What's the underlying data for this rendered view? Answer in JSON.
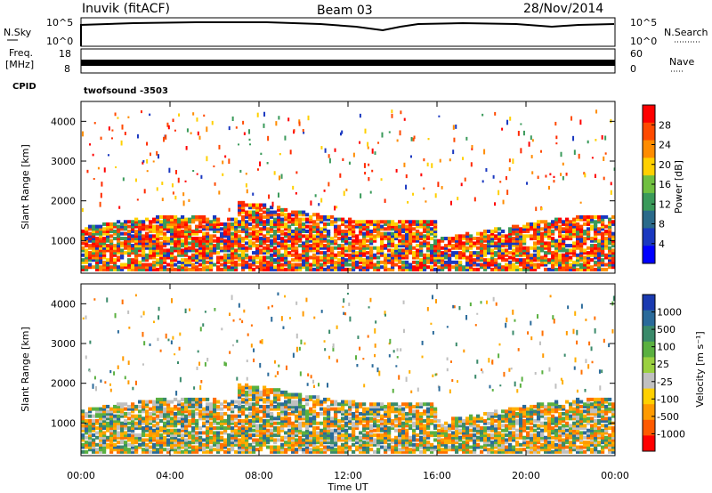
{
  "header": {
    "station": "Inuvik (fitACF)",
    "beam": "Beam 03",
    "date": "28/Nov/2014"
  },
  "panels": {
    "nsky": {
      "left_label": "N.Sky",
      "right_label": "N.Search",
      "ticks": [
        "10^5",
        "10^0"
      ],
      "right_ticks": [
        "10^5",
        "10^0"
      ]
    },
    "freq": {
      "left_label_1": "Freq.",
      "left_label_2": "[MHz]",
      "ticks": [
        "18",
        "8"
      ],
      "right_ticks": [
        "60",
        "0"
      ],
      "right_label": "Nave"
    },
    "cpid": {
      "label": "CPID",
      "value": "twofsound  -3503"
    }
  },
  "power_colorbar": {
    "title": "Power [dB]",
    "ticks": [
      "28",
      "24",
      "20",
      "16",
      "12",
      "8",
      "4"
    ],
    "colors": [
      "#ff0000",
      "#ff4a00",
      "#ff8c00",
      "#ffd000",
      "#70c040",
      "#3a9a5a",
      "#2a6a8a",
      "#1a38c0",
      "#0000ff"
    ]
  },
  "velocity_colorbar": {
    "title": "Velocity [m s⁻¹]",
    "ticks": [
      "1000",
      "500",
      "100",
      "25",
      "-25",
      "-100",
      "-500",
      "-1000"
    ],
    "colors": [
      "#1a3ab0",
      "#2a6a9a",
      "#3a8a6a",
      "#5ab040",
      "#9ad040",
      "#c0c0c0",
      "#ffd000",
      "#ff9a00",
      "#ff5a00",
      "#ff0000"
    ]
  },
  "chart_data": [
    {
      "type": "heatmap",
      "name": "power",
      "ylabel": "Slant Range [km]",
      "xlabel": "",
      "ylim": [
        180,
        4500
      ],
      "yticks": [
        1000,
        2000,
        3000,
        4000
      ],
      "xlim": [
        0,
        24
      ],
      "xticks": [
        "00:00",
        "04:00",
        "08:00",
        "12:00",
        "16:00",
        "20:00",
        "00:00"
      ],
      "colorbar_label": "Power [dB]",
      "colorbar_range": [
        0,
        32
      ]
    },
    {
      "type": "heatmap",
      "name": "velocity",
      "ylabel": "Slant Range [km]",
      "xlabel": "Time UT",
      "ylim": [
        180,
        4500
      ],
      "yticks": [
        1000,
        2000,
        3000,
        4000
      ],
      "xlim": [
        0,
        24
      ],
      "xticks": [
        "00:00",
        "04:00",
        "08:00",
        "12:00",
        "16:00",
        "20:00",
        "00:00"
      ],
      "colorbar_label": "Velocity [m s⁻¹]",
      "colorbar_range": [
        -1000,
        1000
      ]
    }
  ]
}
